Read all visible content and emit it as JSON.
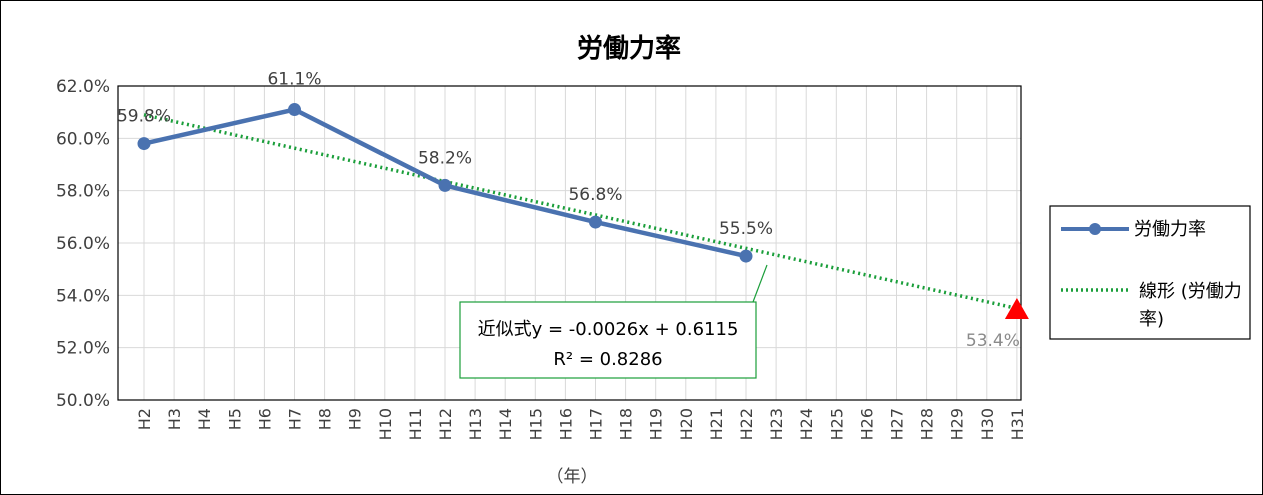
{
  "chart_data": {
    "type": "line",
    "title": "労働力率",
    "xlabel": "（年）",
    "ylabel": "",
    "ylim": [
      0.5,
      0.62
    ],
    "y_ticks": [
      "50.0%",
      "52.0%",
      "54.0%",
      "56.0%",
      "58.0%",
      "60.0%",
      "62.0%"
    ],
    "categories": [
      "H2",
      "H3",
      "H4",
      "H5",
      "H6",
      "H7",
      "H8",
      "H9",
      "H10",
      "H11",
      "H12",
      "H13",
      "H14",
      "H15",
      "H16",
      "H17",
      "H18",
      "H19",
      "H20",
      "H21",
      "H22",
      "H23",
      "H24",
      "H25",
      "H26",
      "H27",
      "H28",
      "H29",
      "H30",
      "H31"
    ],
    "series": [
      {
        "name": "労働力率",
        "color": "#4a72b0",
        "points": [
          {
            "x": "H2",
            "y": 0.598,
            "label": "59.8%"
          },
          {
            "x": "H7",
            "y": 0.611,
            "label": "61.1%"
          },
          {
            "x": "H12",
            "y": 0.582,
            "label": "58.2%"
          },
          {
            "x": "H17",
            "y": 0.568,
            "label": "56.8%"
          },
          {
            "x": "H22",
            "y": 0.555,
            "label": "55.5%"
          }
        ]
      }
    ],
    "trendline": {
      "name": "線形 (労働力率)",
      "color": "#1a9e3a",
      "equation": "近似式y = -0.0026x + 0.6115",
      "r_squared": "R² = 0.8286",
      "slope": -0.0026,
      "intercept": 0.6115
    },
    "projection": {
      "x": "H31",
      "y": 0.534,
      "label": "53.4%",
      "color": "#ff0000"
    },
    "grid": true,
    "legend_position": "right"
  }
}
